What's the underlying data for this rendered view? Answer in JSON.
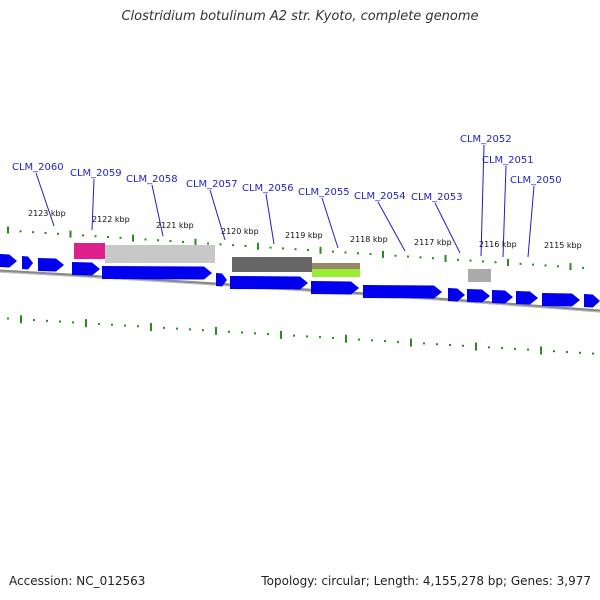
{
  "title": "Clostridium botulinum A2 str. Kyoto, complete genome",
  "footer": {
    "accession": "Accession: NC_012563",
    "topology": "Topology: circular; Length: 4,155,278 bp; Genes: 3,977"
  },
  "genes": [
    "CLM_2060",
    "CLM_2059",
    "CLM_2058",
    "CLM_2057",
    "CLM_2056",
    "CLM_2055",
    "CLM_2054",
    "CLM_2053",
    "CLM_2052",
    "CLM_2051",
    "CLM_2050"
  ],
  "kbp_ticks": [
    "2123 kbp",
    "2122 kbp",
    "2121 kbp",
    "2120 kbp",
    "2119 kbp",
    "2118 kbp",
    "2117 kbp",
    "2116 kbp",
    "2115 kbp"
  ],
  "colors": {
    "forward_gene": "#0000ee",
    "backbone": "#888888",
    "tick": "#2a8a1e",
    "label": "#1f1fc9",
    "leader": "#1f1fc9",
    "feature_magenta": "#e0208a",
    "feature_lightgray": "#c8c8c8",
    "feature_darkgray": "#666666",
    "feature_green": "#99ee33"
  }
}
